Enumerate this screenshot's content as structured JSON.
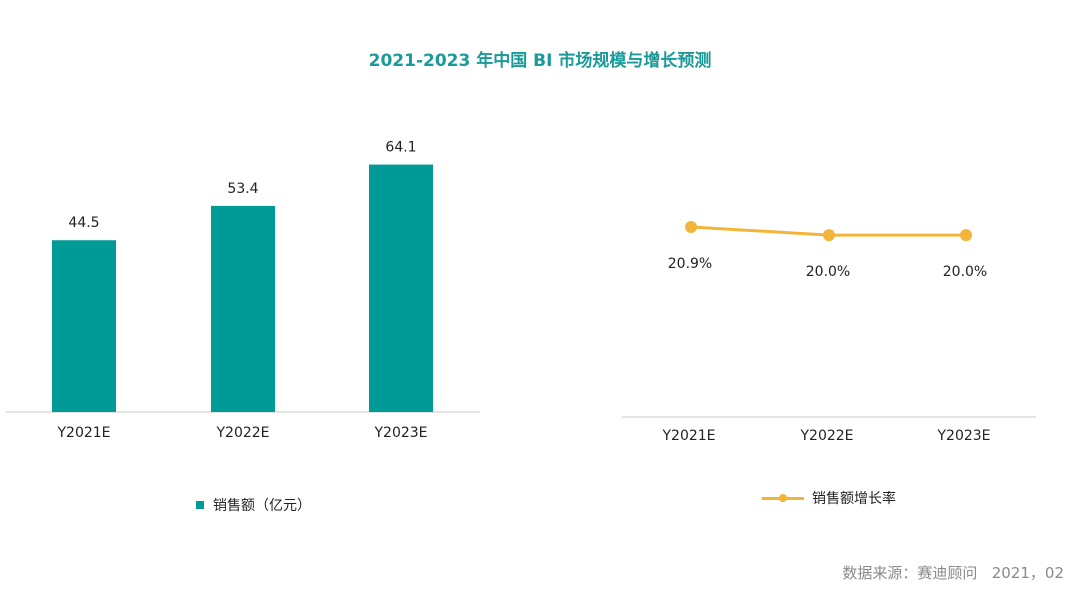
{
  "title": "2021-2023 年中国 BI 市场规模与增长预测",
  "colors": {
    "title": "#1a9a98",
    "bar": "#009b96",
    "line": "#f2b53a",
    "axis": "#c9c9c9",
    "text": "#222222"
  },
  "chart_data": [
    {
      "type": "bar",
      "categories": [
        "Y2021E",
        "Y2022E",
        "Y2023E"
      ],
      "series": [
        {
          "name": "销售额（亿元）",
          "values": [
            44.5,
            53.4,
            64.1
          ]
        }
      ],
      "value_labels": [
        "44.5",
        "53.4",
        "64.1"
      ],
      "legend": "bottom",
      "grid": false
    },
    {
      "type": "line",
      "categories": [
        "Y2021E",
        "Y2022E",
        "Y2023E"
      ],
      "series": [
        {
          "name": "销售额增长率",
          "values": [
            20.9,
            20.0,
            20.0
          ]
        }
      ],
      "value_labels": [
        "20.9%",
        "20.0%",
        "20.0%"
      ],
      "legend": "bottom",
      "grid": false
    }
  ],
  "legend": {
    "bar_label": "销售额（亿元）",
    "line_label": "销售额增长率",
    "bar_icon": "square-swatch",
    "line_icon": "line-marker-swatch"
  },
  "source": "数据来源：赛迪顾问   2021，02"
}
